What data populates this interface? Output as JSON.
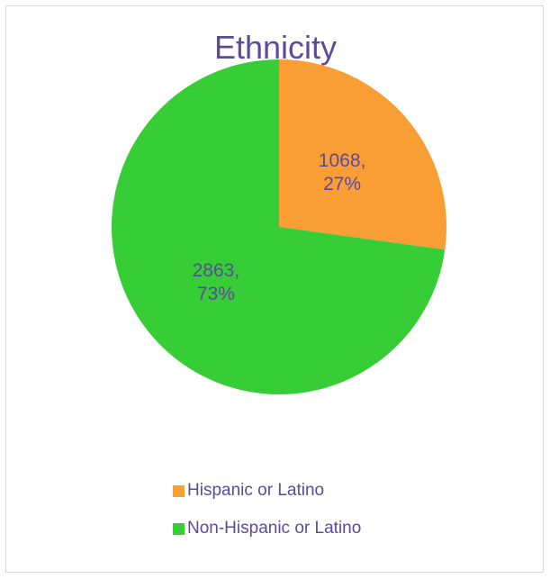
{
  "chart_data": {
    "type": "pie",
    "title": "Ethnicity",
    "slices": [
      {
        "label": "Hispanic or Latino",
        "value": 1068,
        "percent": "27%",
        "color": "#f99e35"
      },
      {
        "label": "Non-Hispanic or Latino",
        "value": 2863,
        "percent": "73%",
        "color": "#36cd36"
      }
    ],
    "legend_position": "bottom",
    "data_labels": [
      "1068,",
      "27%",
      "2863,",
      "73%"
    ]
  }
}
